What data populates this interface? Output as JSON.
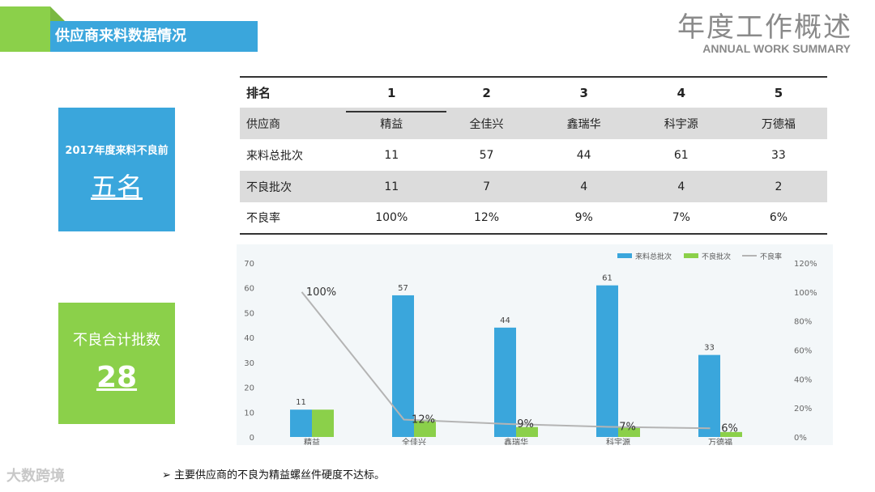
{
  "header": {
    "section_title": "供应商来料数据情况",
    "main_title": "年度工作概述",
    "sub_title": "ANNUAL WORK SUMMARY"
  },
  "cards": {
    "top_label": "2017年度来料不良前",
    "top_value": "五名",
    "bottom_label": "不良合计批数",
    "bottom_value": "28"
  },
  "table": {
    "header": [
      "排名",
      "1",
      "2",
      "3",
      "4",
      "5"
    ],
    "rows": [
      [
        "供应商",
        "精益",
        "全佳兴",
        "鑫瑞华",
        "科宇源",
        "万德福"
      ],
      [
        "来料总批次",
        "11",
        "57",
        "44",
        "61",
        "33"
      ],
      [
        "不良批次",
        "11",
        "7",
        "4",
        "4",
        "2"
      ],
      [
        "不良率",
        "100%",
        "12%",
        "9%",
        "7%",
        "6%"
      ]
    ]
  },
  "chart_data": {
    "type": "bar",
    "categories": [
      "精益",
      "全佳兴",
      "鑫瑞华",
      "科宇源",
      "万德福"
    ],
    "series": [
      {
        "name": "来料总批次",
        "type": "bar",
        "axis": "left",
        "color": "#3aa6dc",
        "values": [
          11,
          57,
          44,
          61,
          33
        ],
        "labels": [
          "11",
          "57",
          "44",
          "61",
          "33"
        ]
      },
      {
        "name": "不良批次",
        "type": "bar",
        "axis": "left",
        "color": "#8bd04a",
        "values": [
          11,
          7,
          4,
          4,
          2
        ]
      },
      {
        "name": "不良率",
        "type": "line",
        "axis": "right",
        "color": "#b4b4b4",
        "values": [
          100,
          12,
          9,
          7,
          6
        ],
        "labels": [
          "100%",
          "12%",
          "9%",
          "7%",
          "6%"
        ]
      }
    ],
    "y_left": {
      "min": 0,
      "max": 70,
      "ticks": [
        "0",
        "10",
        "20",
        "30",
        "40",
        "50",
        "60",
        "70"
      ]
    },
    "y_right": {
      "min": 0,
      "max": 120,
      "ticks": [
        "0%",
        "20%",
        "40%",
        "60%",
        "80%",
        "100%",
        "120%"
      ]
    },
    "legend_position": "top-right",
    "grid": false
  },
  "footer": {
    "note": "主要供应商的不良为精益螺丝件硬度不达标。",
    "bullet": "➢",
    "logo": "大数跨境"
  }
}
